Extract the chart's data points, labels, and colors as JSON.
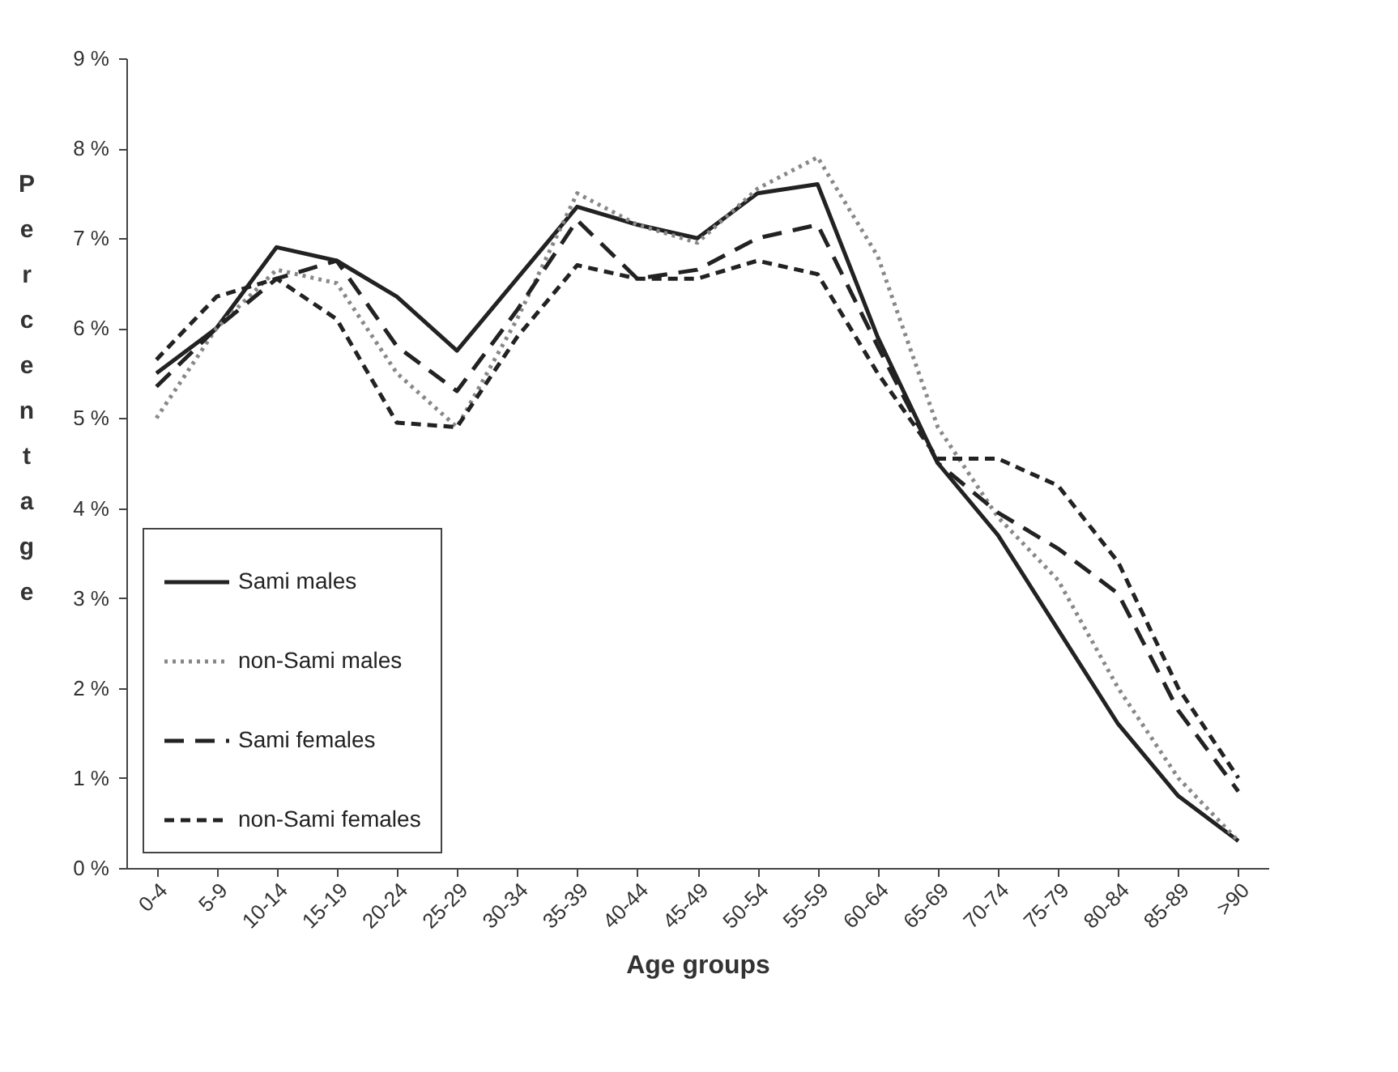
{
  "chart_data": {
    "type": "line",
    "xlabel": "Age groups",
    "ylabel": "Percentage",
    "categories": [
      "0-4",
      "5-9",
      "10-14",
      "15-19",
      "20-24",
      "25-29",
      "30-34",
      "35-39",
      "40-44",
      "45-49",
      "50-54",
      "55-59",
      "60-64",
      "65-69",
      "70-74",
      "75-79",
      "80-84",
      "85-89",
      ">90"
    ],
    "series": [
      {
        "name": "Sami males",
        "color": "#222222",
        "line_style": "solid",
        "values": [
          5.5,
          6.0,
          6.9,
          6.75,
          6.35,
          5.75,
          6.55,
          7.35,
          7.15,
          7.0,
          7.5,
          7.6,
          5.9,
          4.5,
          3.7,
          2.65,
          1.6,
          0.8,
          0.3
        ]
      },
      {
        "name": "non-Sami males",
        "color": "#888888",
        "line_style": "dotted",
        "values": [
          5.0,
          6.0,
          6.65,
          6.5,
          5.5,
          4.9,
          6.1,
          7.5,
          7.15,
          6.95,
          7.55,
          7.9,
          6.8,
          4.9,
          3.9,
          3.2,
          2.0,
          1.0,
          0.3
        ]
      },
      {
        "name": "Sami females",
        "color": "#222222",
        "line_style": "dashed",
        "values": [
          5.35,
          6.0,
          6.55,
          6.75,
          5.8,
          5.3,
          6.2,
          7.2,
          6.55,
          6.65,
          7.0,
          7.15,
          5.8,
          4.5,
          3.95,
          3.55,
          3.05,
          1.75,
          0.85
        ]
      },
      {
        "name": "non-Sami females",
        "color": "#222222",
        "line_style": "dashed",
        "values": [
          5.65,
          6.35,
          6.55,
          6.1,
          4.95,
          4.9,
          5.9,
          6.7,
          6.55,
          6.55,
          6.75,
          6.6,
          5.5,
          4.55,
          4.55,
          4.25,
          3.4,
          2.0,
          1.0
        ]
      }
    ],
    "ylim": [
      0,
      9
    ],
    "yticks": [
      {
        "value": 0,
        "label": "0 %"
      },
      {
        "value": 1,
        "label": "1 %"
      },
      {
        "value": 2,
        "label": "2 %"
      },
      {
        "value": 3,
        "label": "3 %"
      },
      {
        "value": 4,
        "label": "4 %"
      },
      {
        "value": 5,
        "label": "5 %"
      },
      {
        "value": 6,
        "label": "6 %"
      },
      {
        "value": 7,
        "label": "7 %"
      },
      {
        "value": 8,
        "label": "8 %"
      },
      {
        "value": 9,
        "label": "9 %"
      }
    ],
    "grid": false,
    "legend": "bottom left",
    "marker": "none"
  }
}
